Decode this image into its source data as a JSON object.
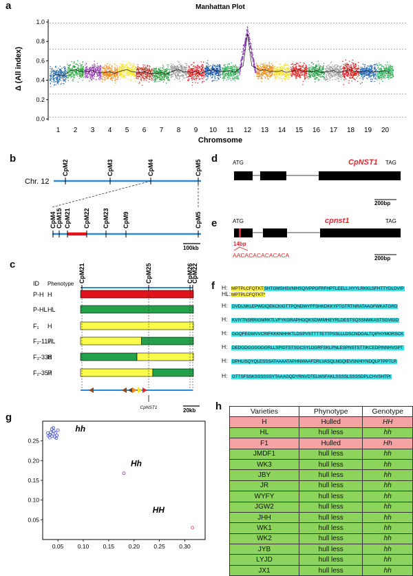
{
  "panel_letters": {
    "a": "a",
    "b": "b",
    "c": "c",
    "d": "d",
    "e": "e",
    "f": "f",
    "g": "g",
    "h": "h"
  },
  "colors": {
    "hulled": "#f4a3a3",
    "hullless": "#8cd45c",
    "red": "#e0141a",
    "green": "#22a24a",
    "yellow": "#fbfb4a",
    "blue": "#2d88d2",
    "mutation": "#e3262d"
  },
  "panel_a": {
    "chart_data": {
      "type": "scatter",
      "title": "Manhattan Plot",
      "xlabel": "Chromsome",
      "ylabel": "Δ (All index)",
      "ylim": [
        0,
        1.0
      ],
      "yticks": [
        "0.0",
        "0.2",
        "0.4",
        "0.6",
        "0.8",
        "1.0"
      ],
      "xticks": [
        "1",
        "2",
        "3",
        "4",
        "5",
        "6",
        "7",
        "8",
        "9",
        "10",
        "11",
        "12",
        "13",
        "14",
        "15",
        "16",
        "17",
        "18",
        "19",
        "20"
      ],
      "series": [
        {
          "chromosome": "1",
          "color": "#2c6fb4",
          "mean": 0.45
        },
        {
          "chromosome": "2",
          "color": "#36a844",
          "mean": 0.5
        },
        {
          "chromosome": "3",
          "color": "#9a3fb5",
          "mean": 0.49
        },
        {
          "chromosome": "4",
          "color": "#f28a1e",
          "mean": 0.48
        },
        {
          "chromosome": "5",
          "color": "#f6e32c",
          "mean": 0.5
        },
        {
          "chromosome": "6",
          "color": "#c0392b",
          "mean": 0.48
        },
        {
          "chromosome": "7",
          "color": "#2e9e40",
          "mean": 0.47
        },
        {
          "chromosome": "8",
          "color": "#9a9a9a",
          "mean": 0.5
        },
        {
          "chromosome": "9",
          "color": "#e01f1f",
          "mean": 0.48
        },
        {
          "chromosome": "10",
          "color": "#1f5aa8",
          "mean": 0.5
        },
        {
          "chromosome": "11",
          "color": "#2fae58",
          "mean": 0.49
        },
        {
          "chromosome": "12",
          "color": "#8e3fb8",
          "mean": 0.66
        },
        {
          "chromosome": "13",
          "color": "#ef8a1c",
          "mean": 0.5
        },
        {
          "chromosome": "14",
          "color": "#f3e033",
          "mean": 0.49
        },
        {
          "chromosome": "15",
          "color": "#e02f2f",
          "mean": 0.5
        },
        {
          "chromosome": "16",
          "color": "#2d9f4a",
          "mean": 0.49
        },
        {
          "chromosome": "17",
          "color": "#9e9e9e",
          "mean": 0.49
        },
        {
          "chromosome": "18",
          "color": "#d61d1d",
          "mean": 0.5
        },
        {
          "chromosome": "19",
          "color": "#2868b5",
          "mean": 0.49
        },
        {
          "chromosome": "20",
          "color": "#2fae58",
          "mean": 0.49
        }
      ],
      "threshold_lines": [
        0.99,
        0.72,
        0.26,
        0.02
      ],
      "grid": false
    }
  },
  "panel_b": {
    "chr_label": "Chr. 12",
    "top_markers": [
      "CpM2",
      "CpM3",
      "CpM4",
      "CpM5"
    ],
    "bottom_markers": [
      "CpM4",
      "CpM15",
      "CpM21",
      "CpM22",
      "CpM23",
      "CpM9",
      "CpM5"
    ],
    "scale": "100kb"
  },
  "panel_c": {
    "markers": [
      "CpM21",
      "CpM25",
      "CpM26",
      "CpM22"
    ],
    "header_id": "ID",
    "header_phenotype": "Phenotype",
    "rows": [
      {
        "id": "P-H",
        "phen": "H",
        "pattern": "red",
        "split": 1.0
      },
      {
        "id": "P-HL",
        "phen": "HL",
        "pattern": "green",
        "split": 1.0
      },
      {
        "id": "F₁",
        "phen": "H",
        "pattern": "yellow",
        "split": 1.0
      },
      {
        "id": "F₂-117",
        "phen": "HL",
        "pattern": "yellow-green",
        "split": 0.54
      },
      {
        "id": "F₂-338",
        "phen": "H",
        "pattern": "green-yellow",
        "split": 0.5
      },
      {
        "id": "F₂-357",
        "phen": "H",
        "pattern": "yellow-green",
        "split": 0.64
      }
    ],
    "gene": "CpNST1",
    "scale": "20kb"
  },
  "panel_d": {
    "start": "ATG",
    "stop": "TAG",
    "gene": "CpNST1",
    "scale": "200bp"
  },
  "panel_e": {
    "start": "ATG",
    "stop": "TAG",
    "gene": "cpnst1",
    "insert": "14bp",
    "insert_seq": "AACACACACACACA",
    "scale": "200bp"
  },
  "panel_f": {
    "lines": [
      {
        "hdr": "H:",
        "prefix": "MPTPLCFQTKT",
        "seq": "SHTGMSHSVNIHSQIVPPGFRFHPTLEELL.HYYLRKKLSFHTTYDLDVIP"
      },
      {
        "hdr": "HL:",
        "prefix": "MPTPLCFQTKT*",
        "seq": ""
      },
      {
        "hdr": "H:",
        "prefix": "",
        "seq": "DVDLNKLEPWDIQEKCKIGTTPQNDWYFFSHKDKKYPTGTRTNRATAAGFWKATGRD"
      },
      {
        "hdr": "H:",
        "prefix": "",
        "seq": "KVIYTNSRRIGMRKTLVFYKGRAPHGQKSDWIMHEYRLDESTSQSSNMKASTSGVIGD"
      },
      {
        "hdr": "H:",
        "prefix": "",
        "seq": "GGQFEGWVVCRIFKKKNHHKTLDSPVSTTTTETTPSSLLLDSCNDGALTQIFHYMGRSCK"
      },
      {
        "hdr": "H:",
        "prefix": "",
        "seq": "DEDGDGGGGGGRLLSPIDTSTSGCSYLDGRFSKLPNLESPNSTSTTIKCEDPINNHVGPT"
      },
      {
        "hdr": "H:",
        "prefix": "",
        "seq": "DPHLISQYQLESSSATAAAATAPHNWAAFDRLVASQLNGQIEVSNHIYNDQLPTPPTLR"
      },
      {
        "hdr": "H:",
        "prefix": "",
        "seq": "GTTSFSSKSSSSSSYTAAAGQDYRNVDTELWSFAKLSSSSLSSSSDPLCHVSHTPI"
      }
    ]
  },
  "panel_g": {
    "chart_data": {
      "type": "scatter",
      "xticks": [
        "0.05",
        "0.10",
        "0.15",
        "0.20",
        "0.25",
        "0.30"
      ],
      "yticks": [
        "0.05",
        "0.10",
        "0.15",
        "0.20",
        "0.25"
      ],
      "xlim": [
        0.02,
        0.34
      ],
      "ylim": [
        0.0,
        0.3
      ],
      "clusters": [
        {
          "name": "hh",
          "color": "#4b5bd6",
          "points": [
            [
              0.03,
              0.27
            ],
            [
              0.034,
              0.265
            ],
            [
              0.036,
              0.272
            ],
            [
              0.038,
              0.262
            ],
            [
              0.04,
              0.268
            ],
            [
              0.042,
              0.275
            ],
            [
              0.034,
              0.258
            ],
            [
              0.045,
              0.27
            ],
            [
              0.048,
              0.264
            ],
            [
              0.05,
              0.277
            ],
            [
              0.038,
              0.28
            ],
            [
              0.044,
              0.26
            ],
            [
              0.041,
              0.283
            ],
            [
              0.031,
              0.263
            ],
            [
              0.047,
              0.257
            ]
          ]
        },
        {
          "name": "Hh",
          "color": "#a23aa6",
          "points": [
            [
              0.18,
              0.168
            ]
          ]
        },
        {
          "name": "HH",
          "color": "#e0506a",
          "points": [
            [
              0.315,
              0.03
            ]
          ]
        }
      ]
    }
  },
  "panel_h": {
    "headers": [
      "Varieties",
      "Phynotype",
      "Genotype"
    ],
    "rows": [
      {
        "v": "H",
        "p": "Hulled",
        "g": "HH",
        "type": "hulled"
      },
      {
        "v": "HL",
        "p": "hull less",
        "g": "hh",
        "type": "hullless"
      },
      {
        "v": "F1",
        "p": "Hulled",
        "g": "Hh",
        "type": "hulled"
      },
      {
        "v": "JMDF1",
        "p": "hull less",
        "g": "hh",
        "type": "hullless"
      },
      {
        "v": "WK3",
        "p": "hull less",
        "g": "hh",
        "type": "hullless"
      },
      {
        "v": "JBY",
        "p": "hull less",
        "g": "hh",
        "type": "hullless"
      },
      {
        "v": "JR",
        "p": "hull less",
        "g": "hh",
        "type": "hullless"
      },
      {
        "v": "WYFY",
        "p": "hull less",
        "g": "hh",
        "type": "hullless"
      },
      {
        "v": "JGW2",
        "p": "hull less",
        "g": "hh",
        "type": "hullless"
      },
      {
        "v": "JHH",
        "p": "hull less",
        "g": "hh",
        "type": "hullless"
      },
      {
        "v": "WK1",
        "p": "hull less",
        "g": "hh",
        "type": "hullless"
      },
      {
        "v": "WK2",
        "p": "hull less",
        "g": "hh",
        "type": "hullless"
      },
      {
        "v": "JYB",
        "p": "hull less",
        "g": "hh",
        "type": "hullless"
      },
      {
        "v": "LYJD",
        "p": "hull less",
        "g": "hh",
        "type": "hullless"
      },
      {
        "v": "JX1",
        "p": "hull less",
        "g": "hh",
        "type": "hullless"
      }
    ]
  }
}
